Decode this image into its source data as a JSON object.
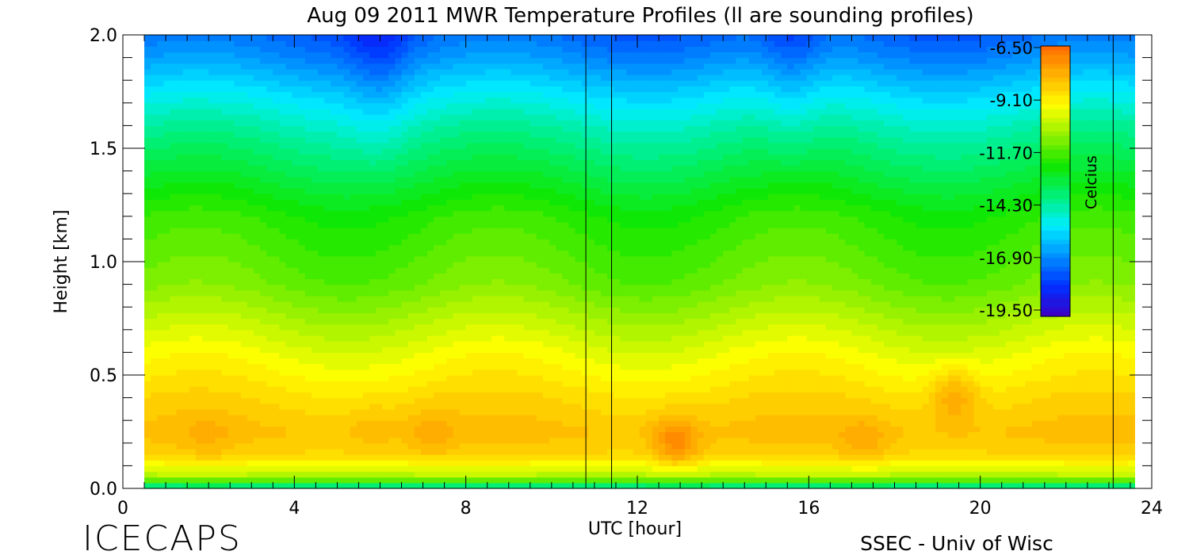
{
  "chart_data": {
    "type": "heatmap",
    "title": "Aug 09 2011 MWR Temperature Profiles (ll are sounding profiles)",
    "xlabel": "UTC [hour]",
    "ylabel": "Height [km]",
    "xlim": [
      0,
      24
    ],
    "ylim": [
      0,
      2.0
    ],
    "x_ticks": [
      "0",
      "4",
      "8",
      "12",
      "16",
      "20",
      "24"
    ],
    "y_ticks": [
      "0.0",
      "0.5",
      "1.0",
      "1.5",
      "2.0"
    ],
    "x_tick_values": [
      0,
      4,
      8,
      12,
      16,
      20,
      24
    ],
    "y_tick_values": [
      0,
      0.5,
      1.0,
      1.5,
      2.0
    ],
    "data_x_range": [
      0.5,
      23.6
    ],
    "sounding_profile_times": [
      10.8,
      11.4,
      23.1
    ],
    "colorbar": {
      "label": "Celcius",
      "min": -19.5,
      "max": -6.5,
      "ticks": [
        "-6.50",
        "-9.10",
        "-11.70",
        "-14.30",
        "-16.90",
        "-19.50"
      ],
      "colormap": [
        "#3a00c8",
        "#0030ff",
        "#0090ff",
        "#00eeff",
        "#00f07a",
        "#10e800",
        "#90f000",
        "#ffff00",
        "#ffb400",
        "#ff6a00"
      ]
    },
    "temperature_profile_typical": {
      "height_km": [
        0.0,
        0.05,
        0.15,
        0.25,
        0.4,
        0.6,
        0.9,
        1.2,
        1.45,
        1.6,
        1.75,
        1.9,
        2.0
      ],
      "temp_c": [
        -14.5,
        -10.5,
        -8.6,
        -8.2,
        -8.7,
        -9.6,
        -11.2,
        -12.0,
        -13.4,
        -14.3,
        -15.4,
        -16.6,
        -17.2
      ]
    },
    "warm_cores": [
      {
        "hour": 2.0,
        "height_km": 0.22,
        "temp_c": -8.0
      },
      {
        "hour": 5.8,
        "height_km": 0.27,
        "temp_c": -8.0
      },
      {
        "hour": 7.2,
        "height_km": 0.25,
        "temp_c": -7.7
      },
      {
        "hour": 12.9,
        "height_km": 0.2,
        "temp_c": -7.1
      },
      {
        "hour": 17.3,
        "height_km": 0.2,
        "temp_c": -7.8
      },
      {
        "hour": 19.4,
        "height_km": 0.42,
        "temp_c": -7.6
      }
    ]
  },
  "footer": {
    "left": "ICECAPS",
    "right": "SSEC - Univ of Wisc"
  }
}
